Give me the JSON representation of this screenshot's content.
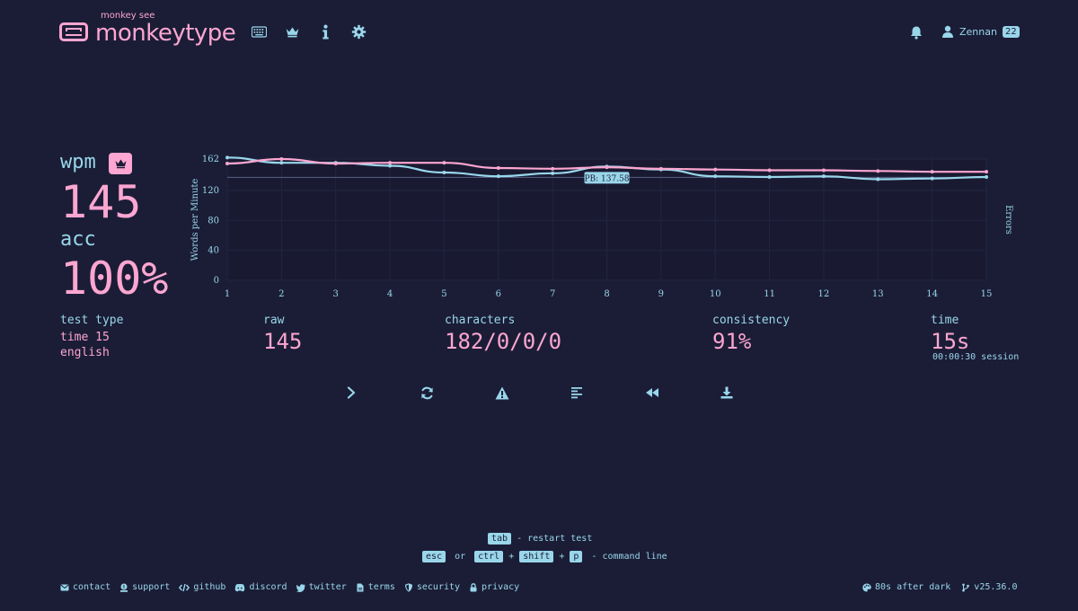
{
  "header": {
    "logo_top": "monkey see",
    "logo_name": "monkeytype",
    "nav_icons": [
      "keyboard-icon",
      "crown-icon",
      "info-icon",
      "gear-icon"
    ],
    "user_name": "Zennan",
    "user_level": "22"
  },
  "result": {
    "wpm_label": "wpm",
    "wpm_value": "145",
    "acc_label": "acc",
    "acc_value": "100%"
  },
  "stats": {
    "test_type_label": "test type",
    "test_type_line1": "time 15",
    "test_type_line2": "english",
    "raw_label": "raw",
    "raw_value": "145",
    "characters_label": "characters",
    "characters_value": "182/0/0/0",
    "consistency_label": "consistency",
    "consistency_value": "91%",
    "time_label": "time",
    "time_value": "15s",
    "session": "00:00:30 session"
  },
  "chart_data": {
    "type": "line",
    "x": [
      1,
      2,
      3,
      4,
      5,
      6,
      7,
      8,
      9,
      10,
      11,
      12,
      13,
      14,
      15
    ],
    "series": [
      {
        "name": "wpm",
        "color": "#fca6d1",
        "values": [
          156,
          162,
          156,
          157,
          157,
          150,
          149,
          151,
          149,
          148,
          147,
          147,
          146,
          145,
          145
        ]
      },
      {
        "name": "raw",
        "color": "#99d6ea",
        "values": [
          164,
          157,
          157,
          153,
          144,
          139,
          143,
          152,
          148,
          139,
          138,
          139,
          135,
          136,
          138
        ]
      }
    ],
    "ylabel": "Words per Minute",
    "y2label": "Errors",
    "y_ticks": [
      "0",
      "40",
      "80",
      "120",
      "162"
    ],
    "x_ticks": [
      "1",
      "2",
      "3",
      "4",
      "5",
      "6",
      "7",
      "8",
      "9",
      "10",
      "11",
      "12",
      "13",
      "14",
      "15"
    ],
    "ylim": [
      0,
      162
    ],
    "pb_value": 137.58,
    "pb_label": "PB: 137.58",
    "grid": true
  },
  "actions": [
    {
      "name": "next-test-button",
      "icon": "chevron-right-icon"
    },
    {
      "name": "restart-button",
      "icon": "refresh-icon"
    },
    {
      "name": "report-button",
      "icon": "warning-icon"
    },
    {
      "name": "words-history-button",
      "icon": "align-left-icon"
    },
    {
      "name": "replay-button",
      "icon": "rewind-icon"
    },
    {
      "name": "save-screenshot-button",
      "icon": "download-icon"
    }
  ],
  "hints": {
    "tab_key": "tab",
    "tab_text": "- restart test",
    "esc_key": "esc",
    "or_text": "or",
    "ctrl_key": "ctrl",
    "plus1": "+",
    "shift_key": "shift",
    "plus2": "+",
    "p_key": "p",
    "command_text": "- command line"
  },
  "footer": {
    "links": [
      {
        "label": "contact",
        "icon": "envelope-icon"
      },
      {
        "label": "support",
        "icon": "donate-icon"
      },
      {
        "label": "github",
        "icon": "code-icon"
      },
      {
        "label": "discord",
        "icon": "discord-icon"
      },
      {
        "label": "twitter",
        "icon": "twitter-icon"
      },
      {
        "label": "terms",
        "icon": "file-icon"
      },
      {
        "label": "security",
        "icon": "shield-icon"
      },
      {
        "label": "privacy",
        "icon": "lock-icon"
      }
    ],
    "theme": "80s after dark",
    "version": "v25.36.0"
  },
  "colors": {
    "background": "#1b1d36",
    "main": "#fca6d1",
    "sub": "#99d6ea"
  }
}
